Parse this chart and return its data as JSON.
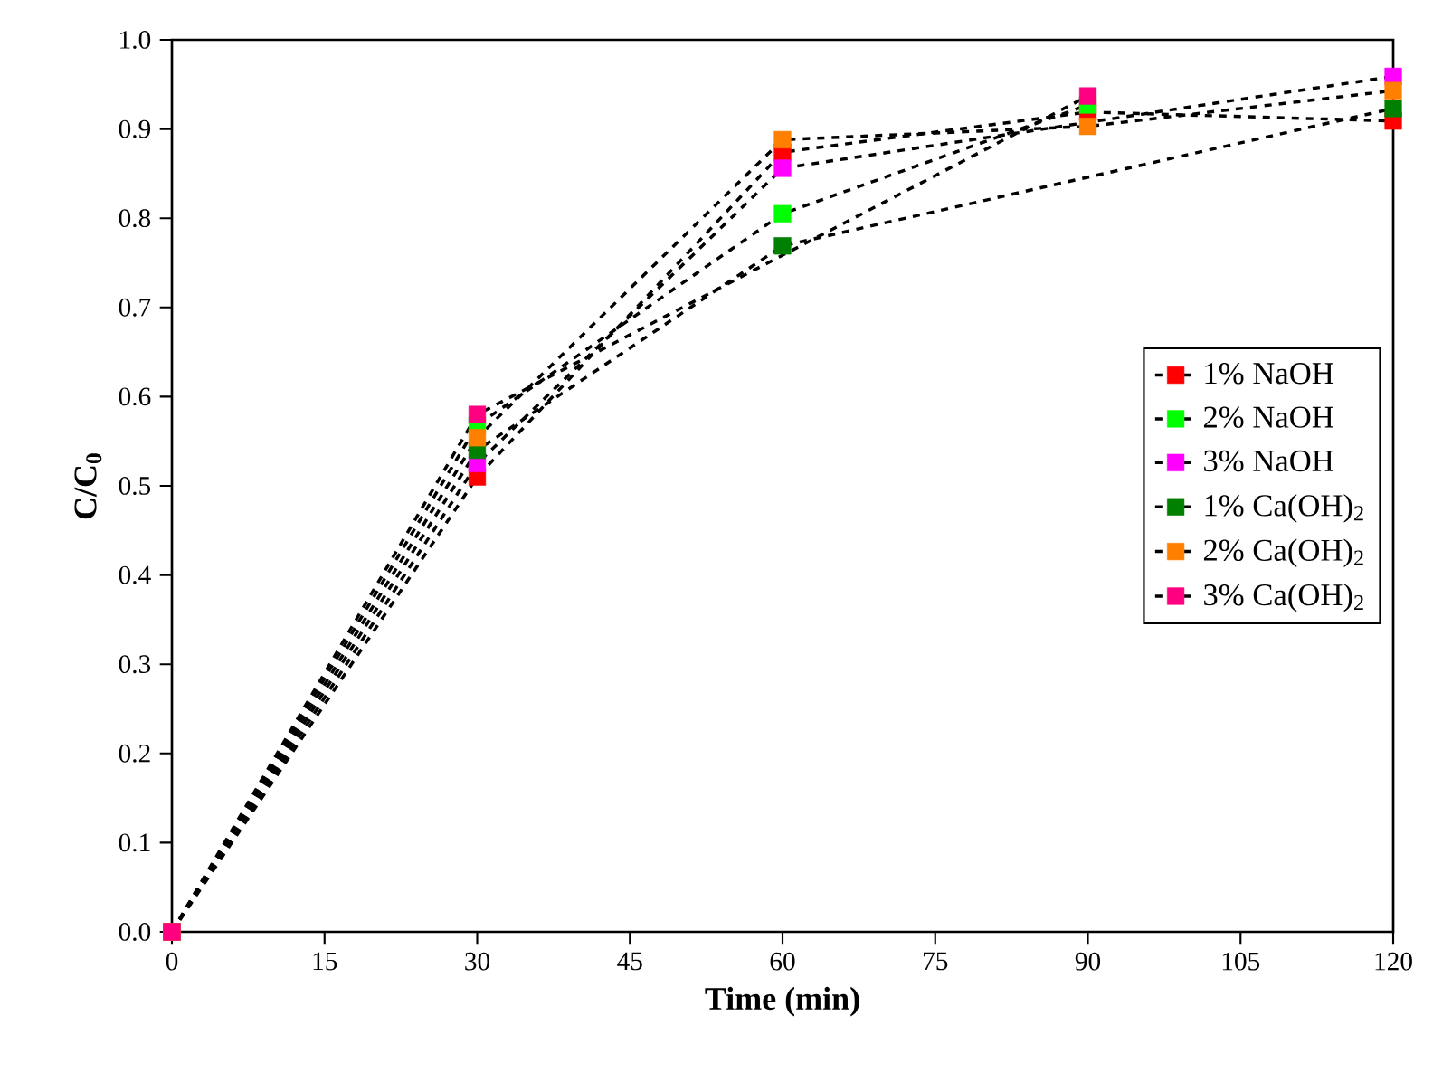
{
  "chart_data": {
    "type": "line",
    "xlabel": "Time (min)",
    "ylabel": "C/C$_{0}$",
    "x": [
      0,
      30,
      60,
      90,
      120
    ],
    "series": [
      {
        "name": "1% NaOH",
        "color": "#ff0000",
        "values": [
          0,
          0.51,
          0.874,
          0.919,
          0.909
        ]
      },
      {
        "name": "2% NaOH",
        "color": "#00ff00",
        "values": [
          0,
          0.568,
          0.805,
          0.927,
          null
        ]
      },
      {
        "name": "3% NaOH",
        "color": "#ff00ff",
        "values": [
          0,
          0.525,
          0.856,
          null,
          0.959
        ]
      },
      {
        "name": "1% Ca(OH)$_{2}$",
        "color": "#008000",
        "values": [
          0,
          0.54,
          0.769,
          null,
          0.923
        ]
      },
      {
        "name": "2% Ca(OH)$_{2}$",
        "color": "#ff8000",
        "values": [
          0,
          0.554,
          0.888,
          0.903,
          0.943
        ]
      },
      {
        "name": "3% Ca(OH)$_{2}$",
        "color": "#ff0080",
        "values": [
          0,
          0.58,
          null,
          0.937,
          null
        ]
      }
    ],
    "xlim": [
      0,
      120
    ],
    "xticks": [
      0,
      15,
      30,
      45,
      60,
      75,
      90,
      105,
      120
    ],
    "ylim": [
      0,
      1.0
    ],
    "yticks": [
      {
        "value": 0,
        "label": "0.0"
      },
      0.1,
      0.2,
      0.3,
      0.4,
      0.5,
      0.6,
      0.7,
      0.8,
      0.9,
      {
        "value": 1,
        "label": "1.0"
      }
    ],
    "marker": "square",
    "line_style": "dashed",
    "legend": "right",
    "grid": false
  }
}
